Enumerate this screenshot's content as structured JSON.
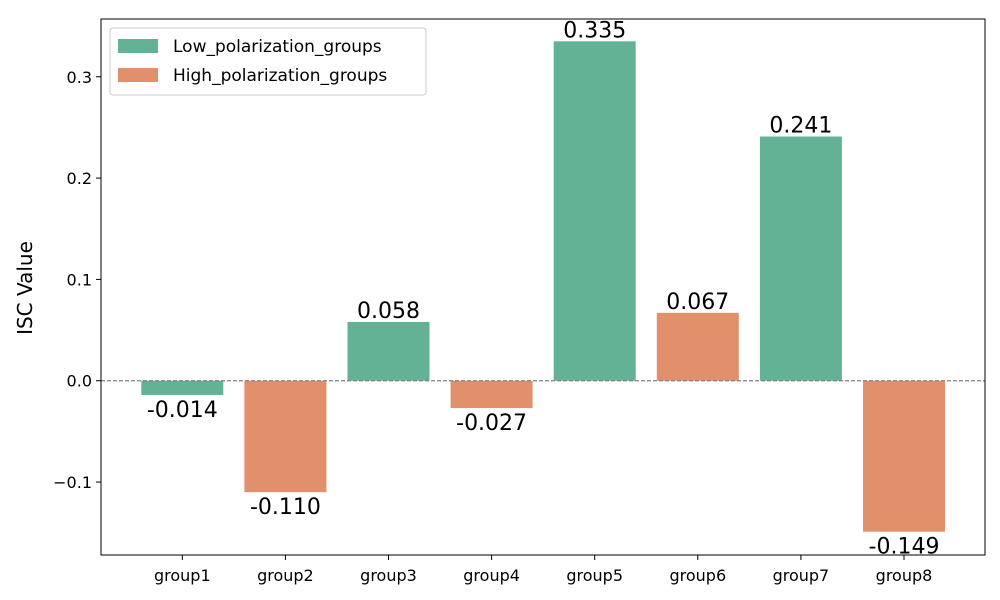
{
  "chart_data": {
    "type": "bar",
    "categories": [
      "group1",
      "group2",
      "group3",
      "group4",
      "group5",
      "group6",
      "group7",
      "group8"
    ],
    "values": [
      -0.014,
      -0.11,
      0.058,
      -0.027,
      0.335,
      0.067,
      0.241,
      -0.149
    ],
    "data_labels": [
      "-0.014",
      "-0.110",
      "0.058",
      "-0.027",
      "0.335",
      "0.067",
      "0.241",
      "-0.149"
    ],
    "bar_series": [
      "Low_polarization_groups",
      "High_polarization_groups",
      "Low_polarization_groups",
      "High_polarization_groups",
      "Low_polarization_groups",
      "High_polarization_groups",
      "Low_polarization_groups",
      "High_polarization_groups"
    ],
    "series": [
      {
        "name": "Low_polarization_groups",
        "color": "#63b296"
      },
      {
        "name": "High_polarization_groups",
        "color": "#e2906c"
      }
    ],
    "title": "",
    "xlabel": "",
    "ylabel": "ISC Value",
    "ylim": [
      -0.172,
      0.357
    ],
    "yticks": [
      -0.1,
      0.0,
      0.1,
      0.2,
      0.3
    ],
    "ytick_labels": [
      "−0.1",
      "0.0",
      "0.1",
      "0.2",
      "0.3"
    ],
    "reference_line": {
      "y": 0.0,
      "style": "dashed",
      "color": "#808080"
    },
    "grid": false,
    "legend_position": "top-left"
  }
}
